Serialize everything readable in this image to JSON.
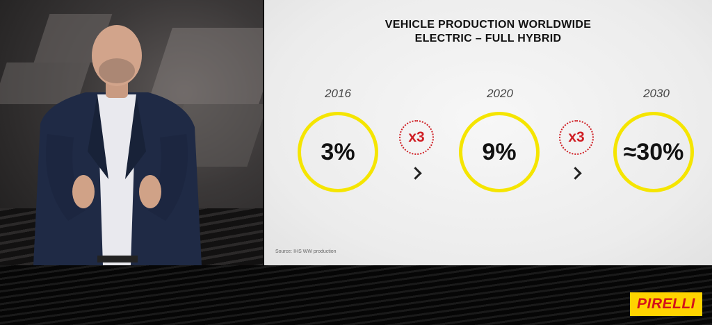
{
  "slide": {
    "title_line1": "VEHICLE PRODUCTION WORLDWIDE",
    "title_line2": "ELECTRIC – FULL HYBRID",
    "stages": [
      {
        "year": "2016",
        "value": "3%"
      },
      {
        "year": "2020",
        "value": "9%"
      },
      {
        "year": "2030",
        "value": "≈30%"
      }
    ],
    "multipliers": [
      "x3",
      "x3"
    ],
    "source": "Source: IHS WW production"
  },
  "logo": {
    "text": "PIRELLI"
  },
  "colors": {
    "circle": "#f5e500",
    "multiplier": "#cf1f25",
    "logo_bg": "#ffd400",
    "logo_text": "#d4121a"
  },
  "icons": [
    "chevron-right-icon"
  ]
}
